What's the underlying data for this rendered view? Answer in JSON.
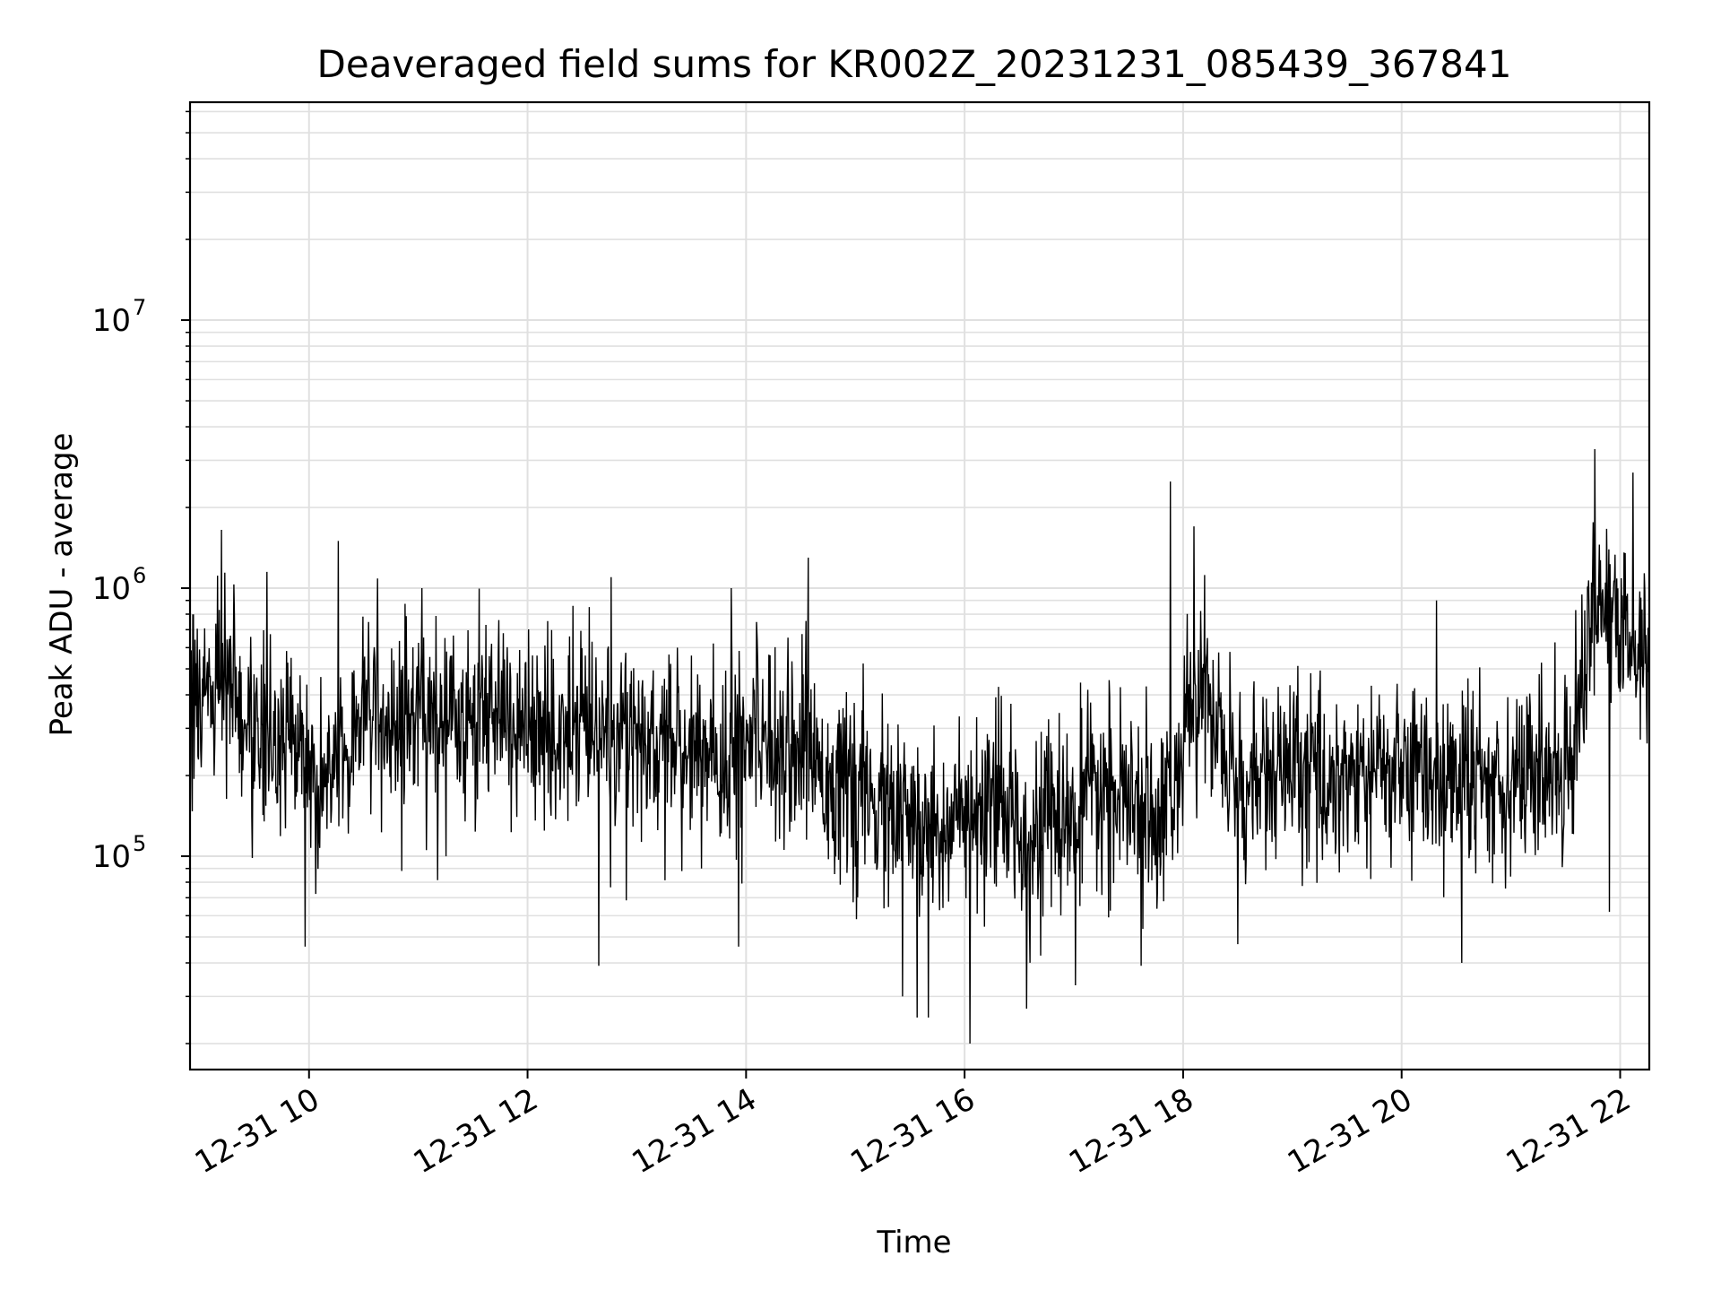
{
  "chart_data": {
    "type": "line",
    "title": "Deaveraged field sums for KR002Z_20231231_085439_367841",
    "xlabel": "Time",
    "ylabel": "Peak ADU - average",
    "yscale": "log",
    "ylim": [
      16000,
      65000000
    ],
    "xlim": [
      "2023-12-31T08:54:39",
      "2023-12-31T22:16:00"
    ],
    "grid": true,
    "line_color": "#000000",
    "grid_color": "#e0e0e0",
    "x_ticks": [
      {
        "label": "12-31 10",
        "t": "2023-12-31T10:00:00"
      },
      {
        "label": "12-31 12",
        "t": "2023-12-31T12:00:00"
      },
      {
        "label": "12-31 14",
        "t": "2023-12-31T14:00:00"
      },
      {
        "label": "12-31 16",
        "t": "2023-12-31T16:00:00"
      },
      {
        "label": "12-31 18",
        "t": "2023-12-31T18:00:00"
      },
      {
        "label": "12-31 20",
        "t": "2023-12-31T20:00:00"
      },
      {
        "label": "12-31 22",
        "t": "2023-12-31T22:00:00"
      }
    ],
    "y_ticks": [
      {
        "base": "10",
        "exp": "5",
        "value": 100000
      },
      {
        "base": "10",
        "exp": "6",
        "value": 1000000
      },
      {
        "base": "10",
        "exp": "7",
        "value": 10000000
      }
    ],
    "series": [
      {
        "x": [
          "2023-12-31T08:55:00",
          "2023-12-31T09:05:00",
          "2023-12-31T09:15:00",
          "2023-12-31T09:25:00",
          "2023-12-31T09:35:00",
          "2023-12-31T09:45:00",
          "2023-12-31T09:55:00",
          "2023-12-31T10:05:00",
          "2023-12-31T10:15:00",
          "2023-12-31T10:25:00",
          "2023-12-31T10:35:00",
          "2023-12-31T10:45:00",
          "2023-12-31T10:55:00",
          "2023-12-31T11:05:00",
          "2023-12-31T11:15:00",
          "2023-12-31T11:25:00",
          "2023-12-31T11:35:00",
          "2023-12-31T11:45:00",
          "2023-12-31T11:55:00",
          "2023-12-31T12:05:00",
          "2023-12-31T12:15:00",
          "2023-12-31T12:25:00",
          "2023-12-31T12:35:00",
          "2023-12-31T12:45:00",
          "2023-12-31T12:55:00",
          "2023-12-31T13:05:00",
          "2023-12-31T13:15:00",
          "2023-12-31T13:25:00",
          "2023-12-31T13:35:00",
          "2023-12-31T13:45:00",
          "2023-12-31T13:55:00",
          "2023-12-31T14:05:00",
          "2023-12-31T14:15:00",
          "2023-12-31T14:25:00",
          "2023-12-31T14:35:00",
          "2023-12-31T14:45:00",
          "2023-12-31T14:55:00",
          "2023-12-31T15:05:00",
          "2023-12-31T15:15:00",
          "2023-12-31T15:25:00",
          "2023-12-31T15:35:00",
          "2023-12-31T15:45:00",
          "2023-12-31T15:55:00",
          "2023-12-31T16:05:00",
          "2023-12-31T16:15:00",
          "2023-12-31T16:25:00",
          "2023-12-31T16:35:00",
          "2023-12-31T16:45:00",
          "2023-12-31T16:55:00",
          "2023-12-31T17:05:00",
          "2023-12-31T17:15:00",
          "2023-12-31T17:25:00",
          "2023-12-31T17:35:00",
          "2023-12-31T17:45:00",
          "2023-12-31T17:55:00",
          "2023-12-31T18:05:00",
          "2023-12-31T18:15:00",
          "2023-12-31T18:25:00",
          "2023-12-31T18:35:00",
          "2023-12-31T18:45:00",
          "2023-12-31T18:55:00",
          "2023-12-31T19:05:00",
          "2023-12-31T19:15:00",
          "2023-12-31T19:25:00",
          "2023-12-31T19:35:00",
          "2023-12-31T19:45:00",
          "2023-12-31T19:55:00",
          "2023-12-31T20:05:00",
          "2023-12-31T20:15:00",
          "2023-12-31T20:25:00",
          "2023-12-31T20:35:00",
          "2023-12-31T20:45:00",
          "2023-12-31T20:55:00",
          "2023-12-31T21:05:00",
          "2023-12-31T21:15:00",
          "2023-12-31T21:25:00",
          "2023-12-31T21:35:00",
          "2023-12-31T21:45:00",
          "2023-12-31T21:55:00",
          "2023-12-31T22:05:00",
          "2023-12-31T22:15:00"
        ],
        "y": [
          350000,
          420000,
          450000,
          330000,
          280000,
          270000,
          250000,
          180000,
          210000,
          330000,
          370000,
          300000,
          320000,
          340000,
          330000,
          300000,
          350000,
          320000,
          330000,
          300000,
          280000,
          290000,
          300000,
          280000,
          270000,
          260000,
          260000,
          250000,
          250000,
          230000,
          250000,
          310000,
          280000,
          260000,
          260000,
          200000,
          170000,
          160000,
          150000,
          140000,
          120000,
          130000,
          140000,
          130000,
          140000,
          150000,
          120000,
          140000,
          130000,
          150000,
          180000,
          160000,
          140000,
          150000,
          170000,
          380000,
          380000,
          210000,
          180000,
          200000,
          200000,
          210000,
          190000,
          200000,
          200000,
          200000,
          210000,
          210000,
          200000,
          190000,
          200000,
          190000,
          200000,
          200000,
          200000,
          210000,
          270000,
          950000,
          750000,
          600000,
          560000
        ]
      }
    ],
    "peaks_high": [
      {
        "t": "2023-12-31T09:12:00",
        "y": 1650000
      },
      {
        "t": "2023-12-31T09:37:00",
        "y": 1150000
      },
      {
        "t": "2023-12-31T10:16:00",
        "y": 1500000
      },
      {
        "t": "2023-12-31T11:02:00",
        "y": 1000000
      },
      {
        "t": "2023-12-31T12:46:00",
        "y": 1100000
      },
      {
        "t": "2023-12-31T13:52:00",
        "y": 1000000
      },
      {
        "t": "2023-12-31T14:34:00",
        "y": 1300000
      },
      {
        "t": "2023-12-31T17:53:00",
        "y": 2500000
      },
      {
        "t": "2023-12-31T18:06:00",
        "y": 1700000
      },
      {
        "t": "2023-12-31T20:19:00",
        "y": 900000
      },
      {
        "t": "2023-12-31T21:46:00",
        "y": 3300000
      },
      {
        "t": "2023-12-31T22:07:00",
        "y": 2700000
      }
    ],
    "troughs_low": [
      {
        "t": "2023-12-31T09:58:00",
        "y": 46000
      },
      {
        "t": "2023-12-31T12:39:00",
        "y": 39000
      },
      {
        "t": "2023-12-31T13:56:00",
        "y": 46000
      },
      {
        "t": "2023-12-31T15:26:00",
        "y": 30000
      },
      {
        "t": "2023-12-31T15:34:00",
        "y": 25000
      },
      {
        "t": "2023-12-31T15:40:00",
        "y": 25000
      },
      {
        "t": "2023-12-31T16:03:00",
        "y": 20000
      },
      {
        "t": "2023-12-31T16:34:00",
        "y": 27000
      },
      {
        "t": "2023-12-31T17:01:00",
        "y": 33000
      },
      {
        "t": "2023-12-31T17:37:00",
        "y": 39000
      },
      {
        "t": "2023-12-31T18:30:00",
        "y": 47000
      },
      {
        "t": "2023-12-31T20:33:00",
        "y": 40000
      },
      {
        "t": "2023-12-31T21:54:00",
        "y": 62000
      }
    ]
  }
}
